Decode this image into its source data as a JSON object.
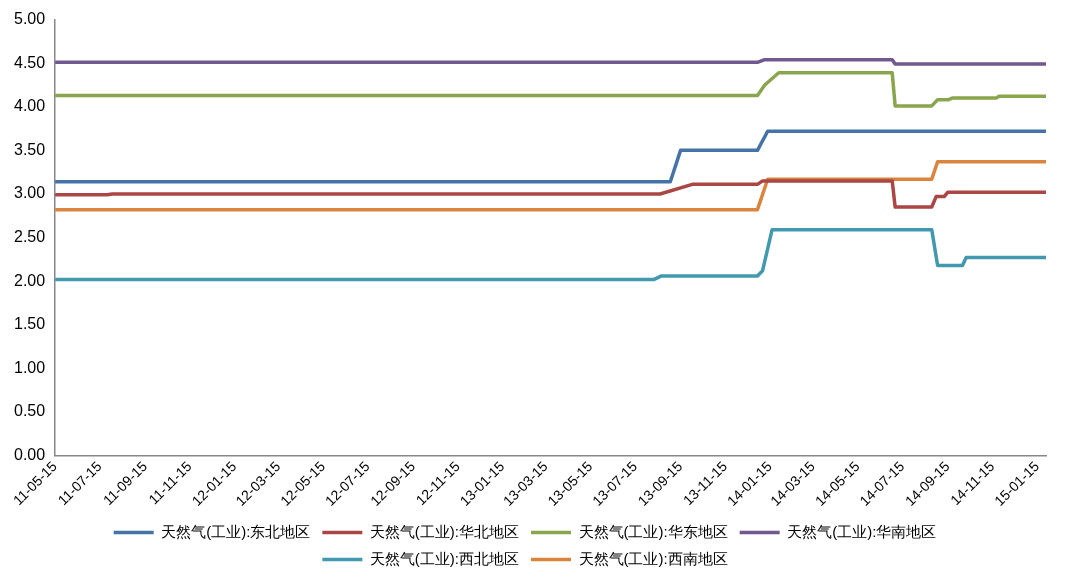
{
  "chart_data": {
    "type": "line",
    "xlim": [
      "2011-05-15",
      "2015-01-27"
    ],
    "xticks": [
      {
        "value": "2011-05-15",
        "label": "11-05-15"
      },
      {
        "value": "2011-07-15",
        "label": "11-07-15"
      },
      {
        "value": "2011-09-15",
        "label": "11-09-15"
      },
      {
        "value": "2011-11-15",
        "label": "11-11-15"
      },
      {
        "value": "2012-01-15",
        "label": "12-01-15"
      },
      {
        "value": "2012-03-15",
        "label": "12-03-15"
      },
      {
        "value": "2012-05-15",
        "label": "12-05-15"
      },
      {
        "value": "2012-07-15",
        "label": "12-07-15"
      },
      {
        "value": "2012-09-15",
        "label": "12-09-15"
      },
      {
        "value": "2012-11-15",
        "label": "12-11-15"
      },
      {
        "value": "2013-01-15",
        "label": "13-01-15"
      },
      {
        "value": "2013-03-15",
        "label": "13-03-15"
      },
      {
        "value": "2013-05-15",
        "label": "13-05-15"
      },
      {
        "value": "2013-07-15",
        "label": "13-07-15"
      },
      {
        "value": "2013-09-15",
        "label": "13-09-15"
      },
      {
        "value": "2013-11-15",
        "label": "13-11-15"
      },
      {
        "value": "2014-01-15",
        "label": "14-01-15"
      },
      {
        "value": "2014-03-15",
        "label": "14-03-15"
      },
      {
        "value": "2014-05-15",
        "label": "14-05-15"
      },
      {
        "value": "2014-07-15",
        "label": "14-07-15"
      },
      {
        "value": "2014-09-15",
        "label": "14-09-15"
      },
      {
        "value": "2014-11-15",
        "label": "14-11-15"
      },
      {
        "value": "2015-01-15",
        "label": "15-01-15"
      }
    ],
    "ylim": [
      0,
      5
    ],
    "yticks": [
      {
        "value": 0,
        "label": "0.00"
      },
      {
        "value": 0.5,
        "label": "0.50"
      },
      {
        "value": 1,
        "label": "1.00"
      },
      {
        "value": 1.5,
        "label": "1.50"
      },
      {
        "value": 2,
        "label": "2.00"
      },
      {
        "value": 2.5,
        "label": "2.50"
      },
      {
        "value": 3,
        "label": "3.00"
      },
      {
        "value": 3.5,
        "label": "3.50"
      },
      {
        "value": 4,
        "label": "4.00"
      },
      {
        "value": 4.5,
        "label": "4.50"
      },
      {
        "value": 5,
        "label": "5.00"
      }
    ],
    "grid": false,
    "legend": "bottom",
    "marker": "none",
    "line_style": "solid",
    "series": [
      {
        "name": "天然气(工业):东北地区",
        "color": "#4572a7",
        "x": [
          "2011-05-15",
          "2013-09-01",
          "2013-09-15",
          "2013-12-29",
          "2014-01-12",
          "2015-01-27"
        ],
        "values": [
          3.14,
          3.14,
          3.5,
          3.5,
          3.72,
          3.72
        ]
      },
      {
        "name": "天然气(工业):华北地区",
        "color": "#aa4643",
        "x": [
          "2011-05-15",
          "2011-07-25",
          "2011-08-01",
          "2013-08-18",
          "2013-10-01",
          "2013-12-29",
          "2014-01-05",
          "2014-07-01",
          "2014-07-05",
          "2014-08-24",
          "2014-08-30",
          "2014-09-10",
          "2014-09-15",
          "2015-01-27"
        ],
        "values": [
          2.99,
          2.99,
          3.0,
          3.0,
          3.11,
          3.11,
          3.15,
          3.15,
          2.85,
          2.85,
          2.97,
          2.97,
          3.02,
          3.02
        ]
      },
      {
        "name": "天然气(工业):华东地区",
        "color": "#89a54e",
        "x": [
          "2011-05-15",
          "2013-12-29",
          "2014-01-08",
          "2014-01-27",
          "2014-07-01",
          "2014-07-05",
          "2014-08-24",
          "2014-09-01",
          "2014-09-15",
          "2014-09-21",
          "2014-11-20",
          "2014-11-24",
          "2015-01-27"
        ],
        "values": [
          4.13,
          4.13,
          4.25,
          4.39,
          4.39,
          4.01,
          4.01,
          4.08,
          4.08,
          4.1,
          4.1,
          4.12,
          4.12
        ]
      },
      {
        "name": "天然气(工业):华南地区",
        "color": "#71588f",
        "x": [
          "2011-05-15",
          "2013-12-29",
          "2014-01-08",
          "2014-07-01",
          "2014-07-05",
          "2015-01-27"
        ],
        "values": [
          4.51,
          4.51,
          4.54,
          4.54,
          4.49,
          4.49
        ]
      },
      {
        "name": "天然气(工业):西北地区",
        "color": "#4198af",
        "x": [
          "2011-05-15",
          "2013-08-10",
          "2013-08-20",
          "2013-12-29",
          "2014-01-05",
          "2014-01-18",
          "2014-08-24",
          "2014-09-01",
          "2014-10-05",
          "2014-10-10",
          "2015-01-27"
        ],
        "values": [
          2.02,
          2.02,
          2.06,
          2.06,
          2.12,
          2.59,
          2.59,
          2.18,
          2.18,
          2.27,
          2.27
        ]
      },
      {
        "name": "天然气(工业):西南地区",
        "color": "#db843d",
        "x": [
          "2011-05-15",
          "2013-12-29",
          "2014-01-12",
          "2014-08-24",
          "2014-09-01",
          "2015-01-27"
        ],
        "values": [
          2.82,
          2.82,
          3.17,
          3.17,
          3.37,
          3.37
        ]
      }
    ]
  }
}
